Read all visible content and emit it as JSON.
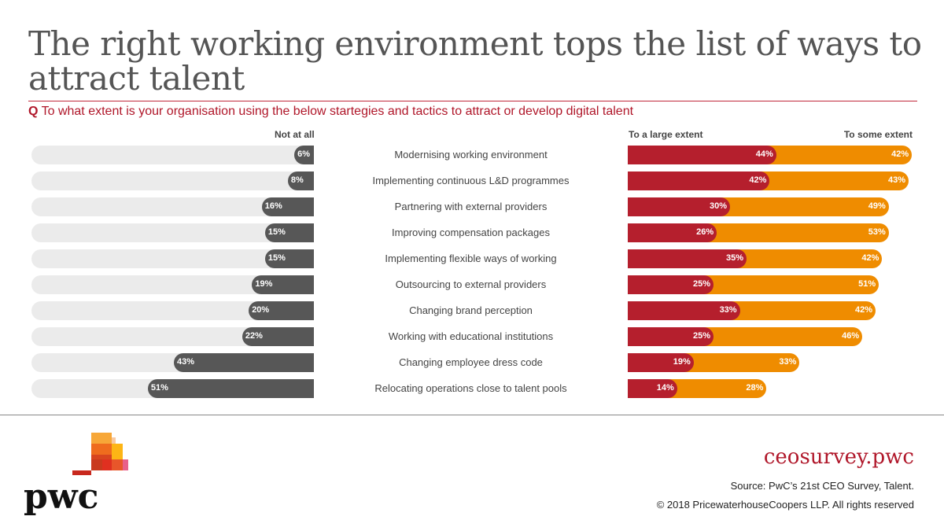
{
  "title": "The right working environment tops the list of ways to attract talent",
  "question_prefix": "Q",
  "question": "To what extent is your organisation using the below startegies and tactics to attract or develop digital talent",
  "chart_data": {
    "type": "bar",
    "headers": {
      "not_at_all": "Not at all",
      "large": "To a large extent",
      "some": "To some extent"
    },
    "categories": [
      "Modernising working environment",
      "Implementing continuous L&D programmes",
      "Partnering with external providers",
      "Improving compensation packages",
      "Implementing flexible ways of working",
      "Outsourcing to external providers",
      "Changing brand perception",
      "Working with educational institutions",
      "Changing employee dress code",
      "Relocating operations close to talent pools"
    ],
    "series": [
      {
        "name": "Not at all",
        "values": [
          6,
          8,
          16,
          15,
          15,
          19,
          20,
          22,
          43,
          51
        ],
        "color": "#575757"
      },
      {
        "name": "To a large extent",
        "values": [
          44,
          42,
          30,
          26,
          35,
          25,
          33,
          25,
          19,
          14
        ],
        "color": "#b51f2d"
      },
      {
        "name": "To some extent",
        "values": [
          42,
          43,
          49,
          53,
          42,
          51,
          42,
          46,
          33,
          28
        ],
        "color": "#ef8c00"
      }
    ],
    "unit": "%"
  },
  "footer": {
    "site": "ceosurvey.pwc",
    "source": "Source: PwC’s 21st CEO Survey, Talent.",
    "copyright": "© 2018 PricewaterhouseCoopers LLP. All rights reserved"
  },
  "logo": {
    "text": "pwc"
  }
}
